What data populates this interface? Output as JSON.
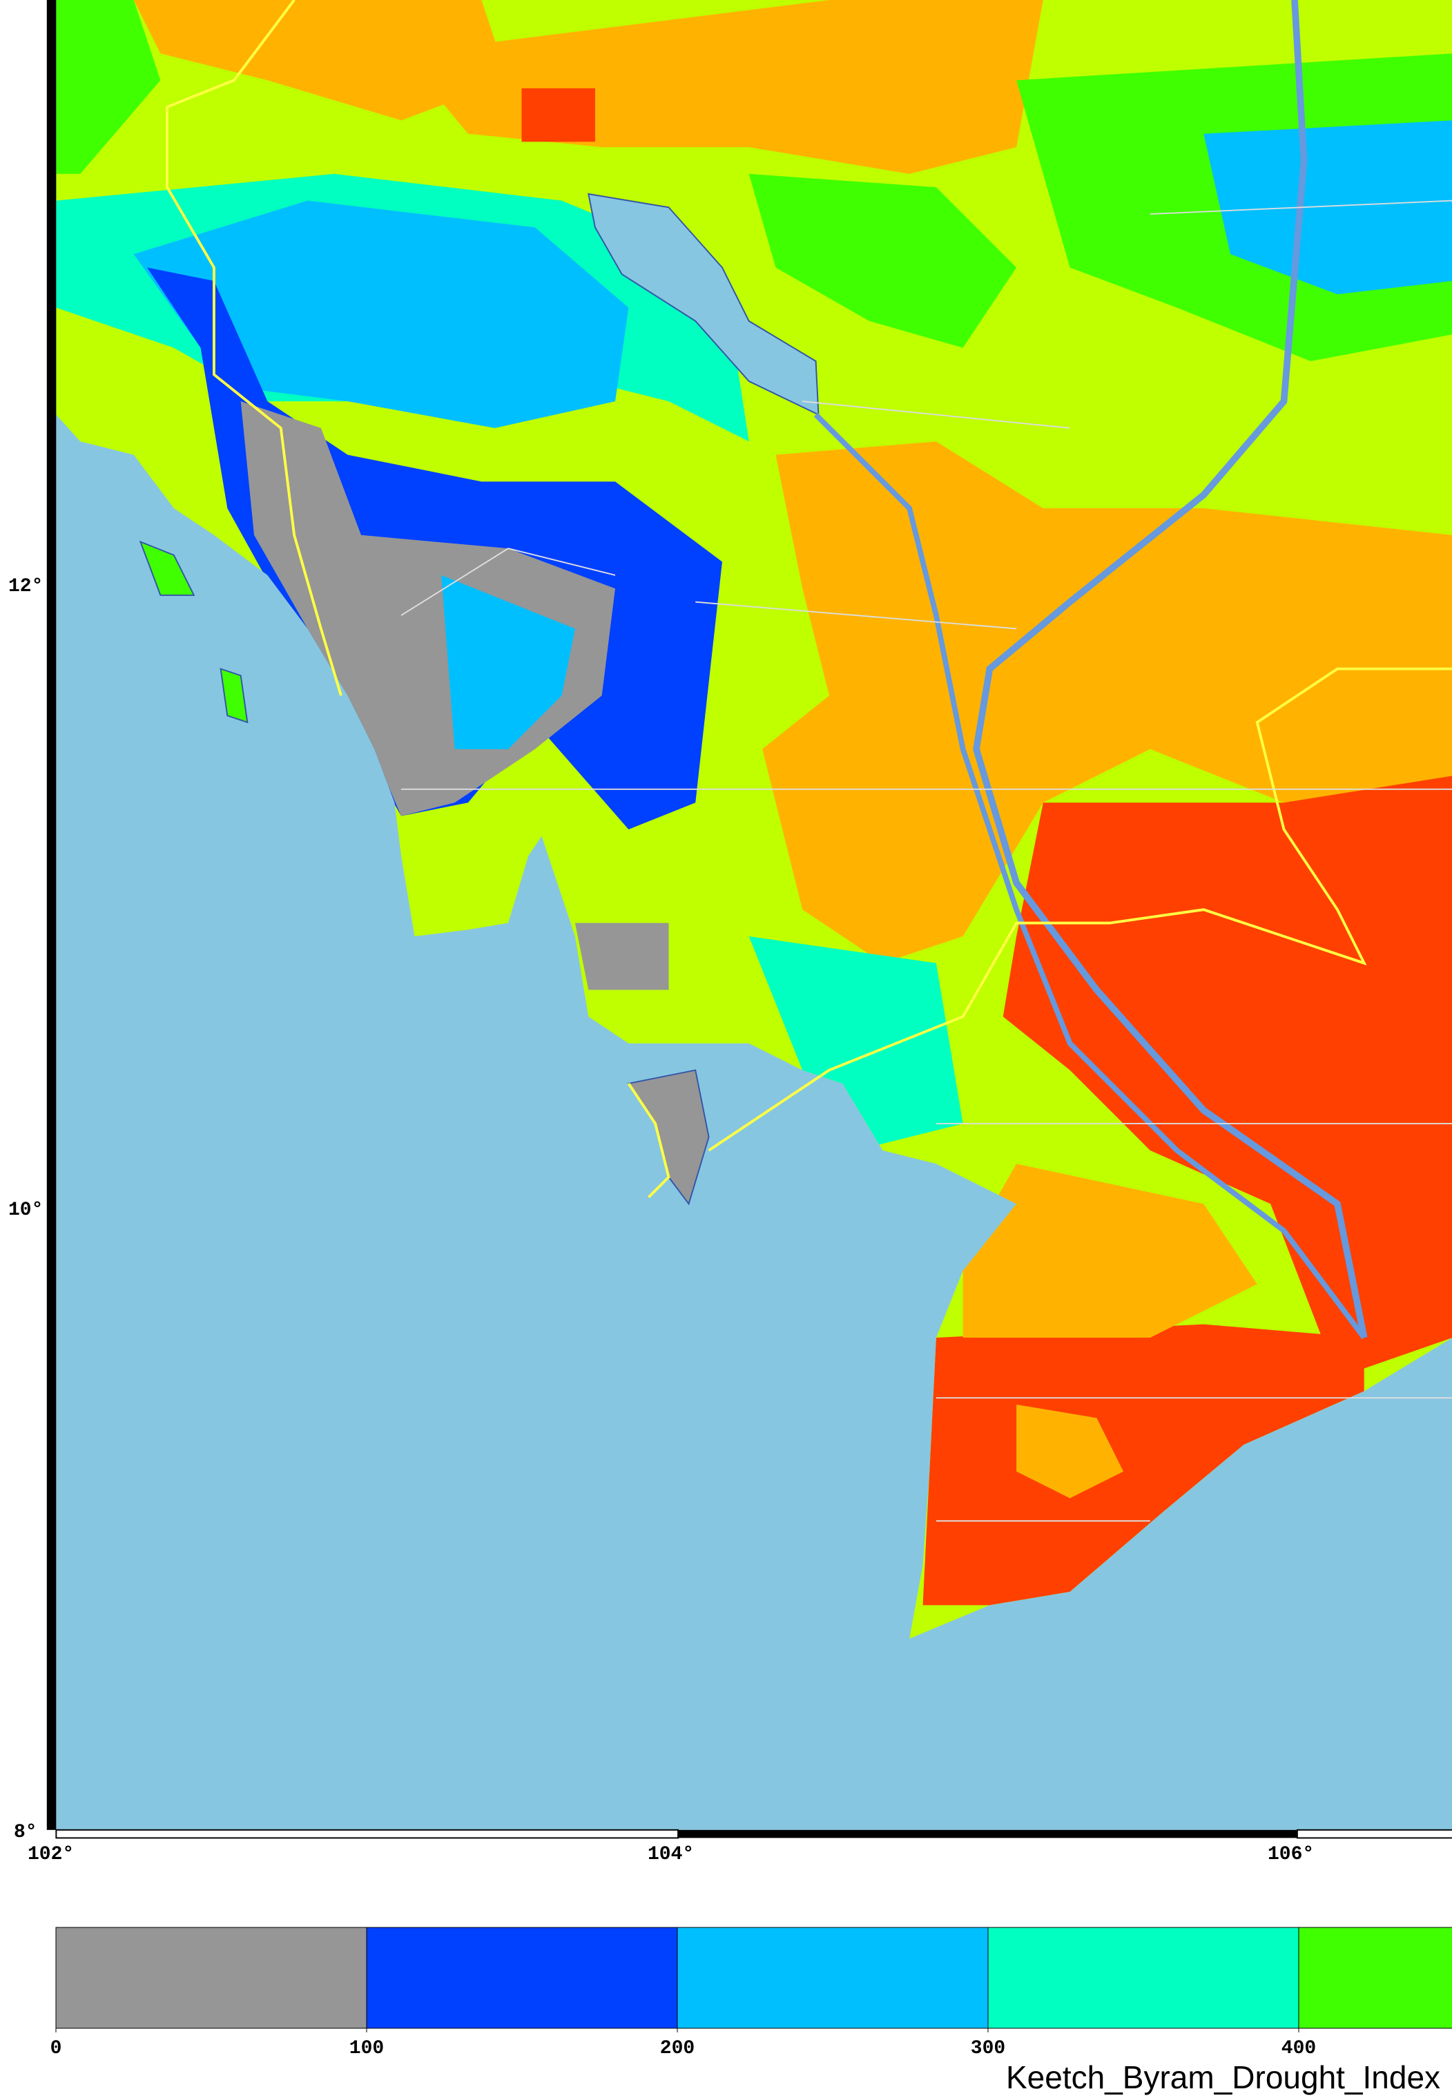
{
  "map": {
    "lon_labels": [
      "102°",
      "104°",
      "106°"
    ],
    "lat_labels": [
      "12°",
      "10°",
      "8°"
    ]
  },
  "colorbar": {
    "ticks": [
      0,
      100,
      200,
      300,
      400
    ],
    "colors": [
      "#969696",
      "#0040ff",
      "#00bfff",
      "#00ffc0",
      "#40ff00"
    ],
    "label": "Keetch_Byram_Drought_Index"
  }
}
